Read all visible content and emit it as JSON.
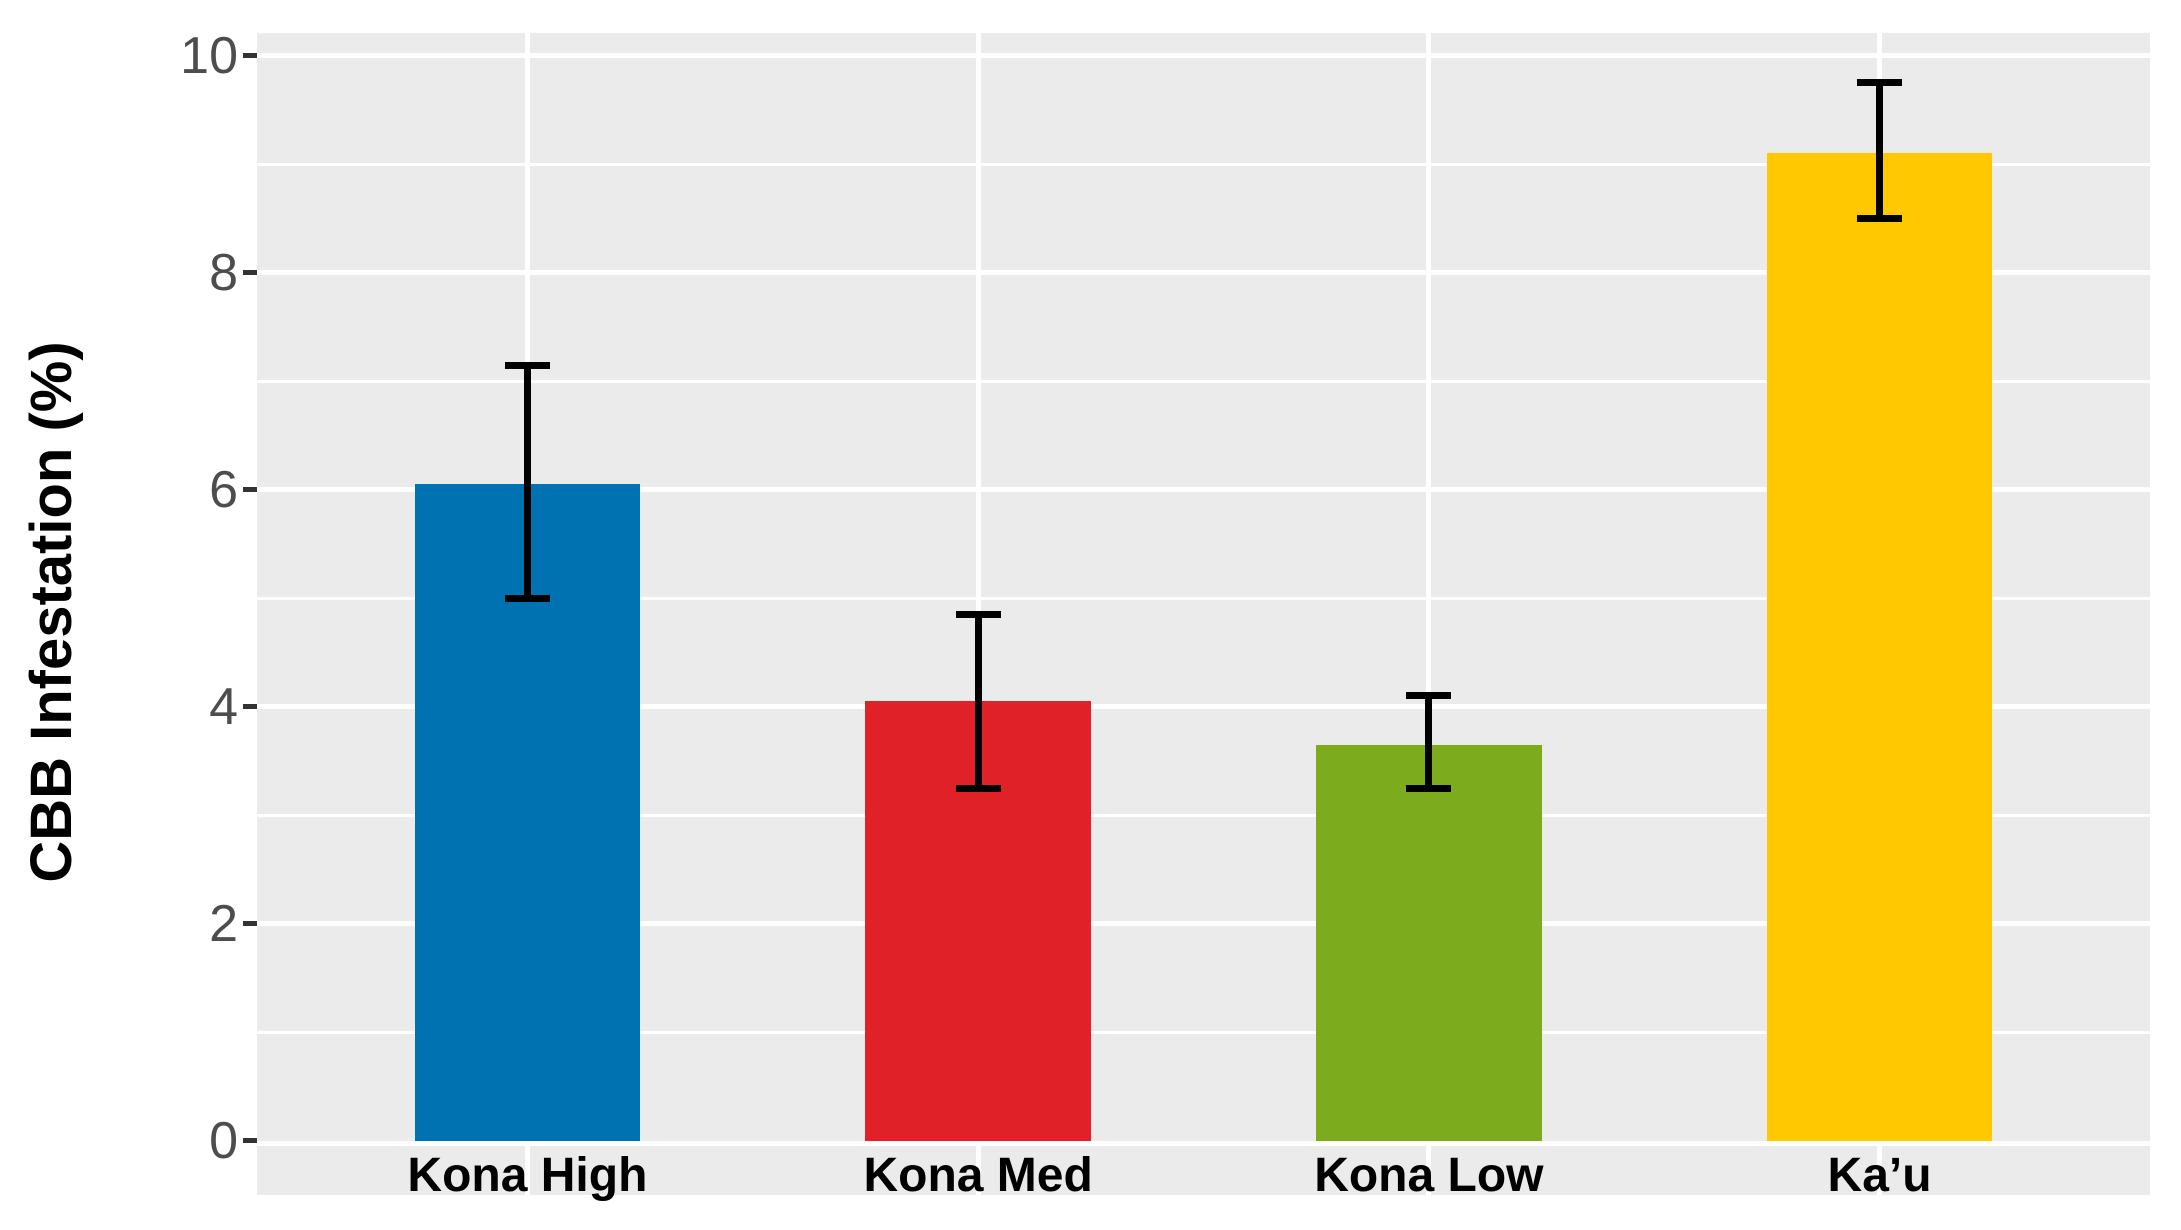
{
  "chart_data": {
    "type": "bar",
    "title": "",
    "xlabel": "",
    "ylabel": "CBB Infestation (%)",
    "categories": [
      "Kona High",
      "Kona Med",
      "Kona Low",
      "Ka’u"
    ],
    "values": [
      6.05,
      4.05,
      3.65,
      9.1
    ],
    "error_low": [
      5.0,
      3.25,
      3.25,
      8.5
    ],
    "error_high": [
      7.15,
      4.85,
      4.1,
      9.75
    ],
    "colors": [
      "#0072b2",
      "#e02127",
      "#7dab1e",
      "#ffc800"
    ],
    "ylim": [
      0,
      10
    ],
    "ytick_labels": [
      "0",
      "2",
      "4",
      "6",
      "8",
      "10"
    ],
    "ytick_values": [
      0,
      2,
      4,
      6,
      8,
      10
    ],
    "minor_grid_values": [
      1,
      3,
      5,
      7,
      9
    ],
    "grid": "on",
    "legend": "none",
    "error_bars": true,
    "panel_shown_range": [
      -0.5,
      10.21
    ]
  },
  "style": {
    "figure_background": "#ffffff",
    "panel_background": "#ebebeb",
    "gridline_color": "#ffffff",
    "error_bar_color": "#000000",
    "tick_mark_color": "#333333",
    "y_tick_label_color": "#4d4d4d",
    "x_tick_label_color": "#000000",
    "axis_title_color": "#000000"
  }
}
